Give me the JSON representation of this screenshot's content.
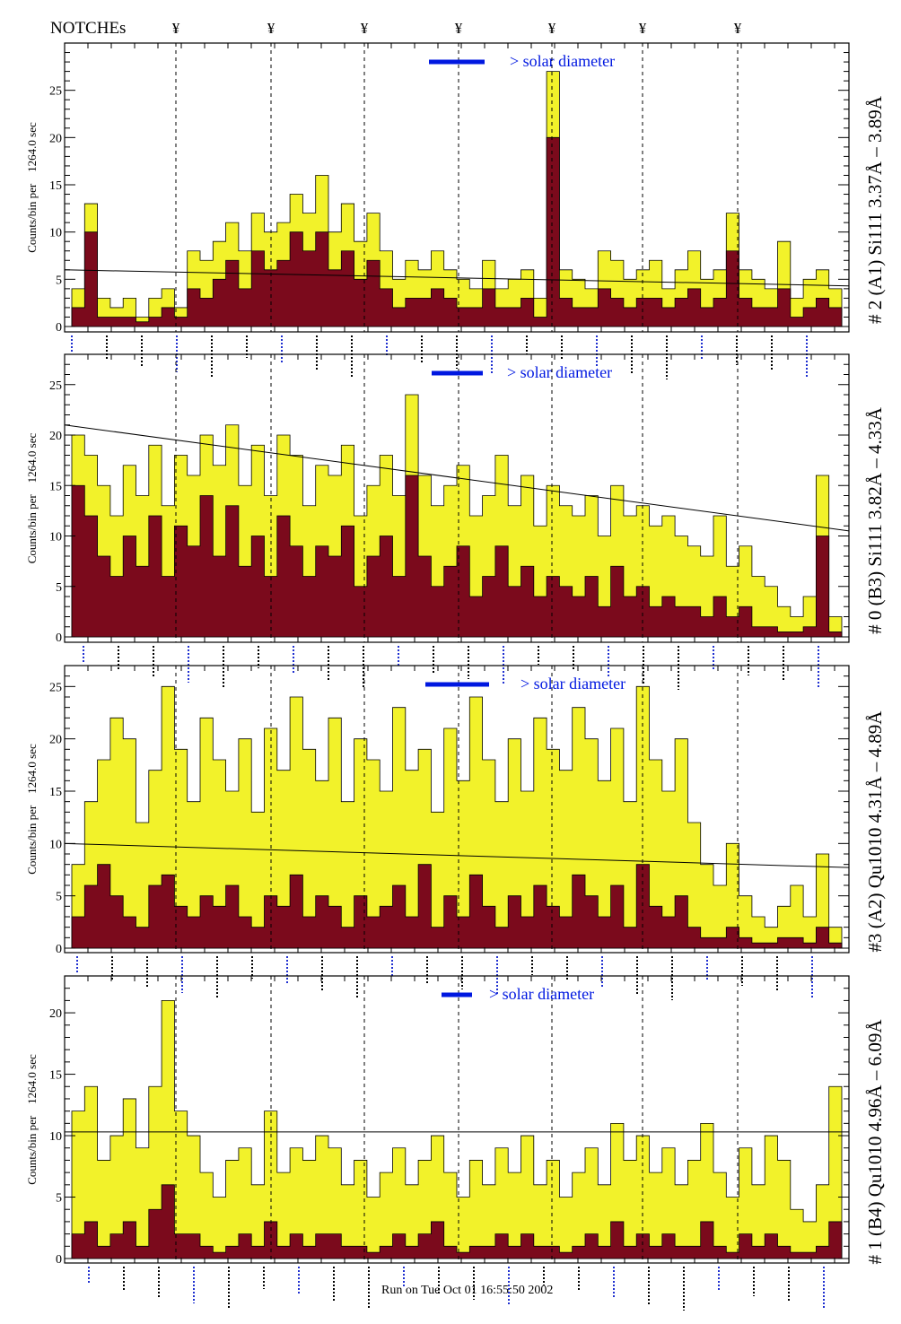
{
  "header": {
    "notches_label": "NOTCHEs",
    "notch_symbol": "¥",
    "notch_count": 7
  },
  "footer": {
    "run_text": "Run on Tue Oct 01 16:55:50 2002"
  },
  "colors": {
    "total": "#f2f22a",
    "subset": "#7b0a1c",
    "legend": "#0018e0"
  },
  "chart_data": [
    {
      "type": "bar",
      "title": "# 2 (A1) Si111  3.37Å – 3.89Å",
      "ylabel": "Counts/bin per    1264.0 sec",
      "legend": "> solar diameter",
      "ylim": [
        0,
        30
      ],
      "yticks": [
        0,
        5,
        10,
        15,
        20,
        25
      ],
      "fit": [
        6,
        4.3
      ],
      "total": [
        4,
        13,
        3,
        2,
        3,
        1,
        3,
        4,
        2,
        8,
        7,
        9,
        11,
        8,
        12,
        10,
        11,
        14,
        12,
        16,
        10,
        13,
        9,
        12,
        8,
        5,
        7,
        6,
        8,
        6,
        5,
        4,
        7,
        4,
        5,
        6,
        3,
        27,
        6,
        5,
        4,
        8,
        7,
        5,
        6,
        7,
        4,
        6,
        8,
        5,
        6,
        12,
        6,
        5,
        4,
        9,
        3,
        5,
        6,
        4
      ],
      "subset": [
        2,
        10,
        1,
        1,
        1,
        0.5,
        1,
        2,
        1,
        4,
        3,
        5,
        7,
        4,
        8,
        6,
        7,
        10,
        8,
        10,
        6,
        8,
        5,
        7,
        4,
        2,
        3,
        3,
        4,
        3,
        2,
        2,
        4,
        2,
        2,
        3,
        1,
        20,
        3,
        2,
        2,
        4,
        3,
        2,
        3,
        3,
        2,
        3,
        4,
        2,
        3,
        8,
        3,
        2,
        2,
        4,
        1,
        2,
        3,
        2
      ]
    },
    {
      "type": "bar",
      "title": "# 0 (B3) Si111  3.82Å – 4.33Å",
      "ylabel": "Counts/bin per    1264.0 sec",
      "legend": "> solar diameter",
      "ylim": [
        0,
        28
      ],
      "yticks": [
        0,
        5,
        10,
        15,
        20,
        25
      ],
      "fit": [
        21,
        10.5
      ],
      "total": [
        20,
        18,
        15,
        12,
        17,
        14,
        19,
        13,
        18,
        16,
        20,
        17,
        21,
        15,
        19,
        14,
        20,
        18,
        13,
        17,
        16,
        19,
        12,
        15,
        18,
        14,
        24,
        16,
        13,
        15,
        17,
        12,
        14,
        18,
        13,
        16,
        11,
        15,
        13,
        12,
        14,
        10,
        15,
        12,
        13,
        11,
        12,
        10,
        9,
        8,
        12,
        7,
        9,
        6,
        5,
        3,
        2,
        4,
        16,
        2
      ],
      "subset": [
        15,
        12,
        8,
        6,
        10,
        7,
        12,
        6,
        11,
        9,
        14,
        8,
        13,
        7,
        10,
        6,
        12,
        9,
        6,
        9,
        8,
        11,
        5,
        8,
        10,
        6,
        16,
        8,
        5,
        7,
        9,
        4,
        6,
        9,
        5,
        7,
        4,
        6,
        5,
        4,
        6,
        3,
        7,
        4,
        5,
        3,
        4,
        3,
        3,
        2,
        4,
        2,
        3,
        1,
        1,
        0.5,
        0.5,
        1,
        10,
        0.5
      ]
    },
    {
      "type": "bar",
      "title": "#3 (A2) Qu1010  4.31Å – 4.89Å",
      "ylabel": "Counts/bin per    1264.0 sec",
      "legend": "> solar diameter",
      "ylim": [
        0,
        27
      ],
      "yticks": [
        0,
        5,
        10,
        15,
        20,
        25
      ],
      "fit": [
        10,
        7.7
      ],
      "total": [
        8,
        14,
        18,
        22,
        20,
        12,
        17,
        25,
        19,
        14,
        22,
        18,
        15,
        20,
        13,
        21,
        17,
        24,
        19,
        16,
        22,
        14,
        20,
        18,
        15,
        23,
        17,
        19,
        13,
        21,
        16,
        24,
        18,
        14,
        20,
        15,
        22,
        19,
        17,
        23,
        20,
        16,
        21,
        14,
        25,
        18,
        15,
        20,
        12,
        8,
        6,
        10,
        5,
        3,
        2,
        4,
        6,
        3,
        9,
        2
      ],
      "subset": [
        3,
        6,
        8,
        5,
        3,
        2,
        6,
        7,
        4,
        3,
        5,
        4,
        6,
        3,
        2,
        5,
        4,
        7,
        3,
        5,
        4,
        2,
        5,
        3,
        4,
        6,
        3,
        8,
        2,
        5,
        3,
        7,
        4,
        2,
        5,
        3,
        6,
        4,
        3,
        7,
        5,
        3,
        6,
        2,
        8,
        4,
        3,
        5,
        2,
        1,
        1,
        2,
        1,
        0.5,
        0.5,
        1,
        1,
        0.5,
        2,
        0.5
      ]
    },
    {
      "type": "bar",
      "title": "# 1 (B4) Qu1010 4.96Å – 6.09Å",
      "ylabel": "Counts/bin per    1264.0 sec",
      "legend": "> solar diameter",
      "ylim": [
        0,
        23
      ],
      "yticks": [
        0,
        5,
        10,
        15,
        20
      ],
      "fit": [
        10.3,
        10.3
      ],
      "total": [
        12,
        14,
        8,
        10,
        13,
        9,
        14,
        21,
        12,
        10,
        7,
        5,
        8,
        9,
        6,
        12,
        7,
        9,
        8,
        10,
        9,
        6,
        8,
        5,
        7,
        9,
        6,
        8,
        10,
        7,
        5,
        8,
        6,
        9,
        7,
        10,
        6,
        8,
        5,
        7,
        9,
        6,
        11,
        8,
        10,
        7,
        9,
        6,
        8,
        11,
        7,
        5,
        9,
        6,
        10,
        8,
        4,
        3,
        6,
        14
      ],
      "subset": [
        2,
        3,
        1,
        2,
        3,
        1,
        4,
        6,
        2,
        2,
        1,
        0.5,
        1,
        2,
        1,
        3,
        1,
        2,
        1,
        2,
        2,
        1,
        1,
        0.5,
        1,
        2,
        1,
        2,
        3,
        1,
        0.5,
        1,
        1,
        2,
        1,
        2,
        1,
        1,
        0.5,
        1,
        2,
        1,
        3,
        1,
        2,
        1,
        2,
        1,
        1,
        3,
        1,
        0.5,
        2,
        1,
        2,
        1,
        0.5,
        0.5,
        1,
        3
      ]
    }
  ]
}
